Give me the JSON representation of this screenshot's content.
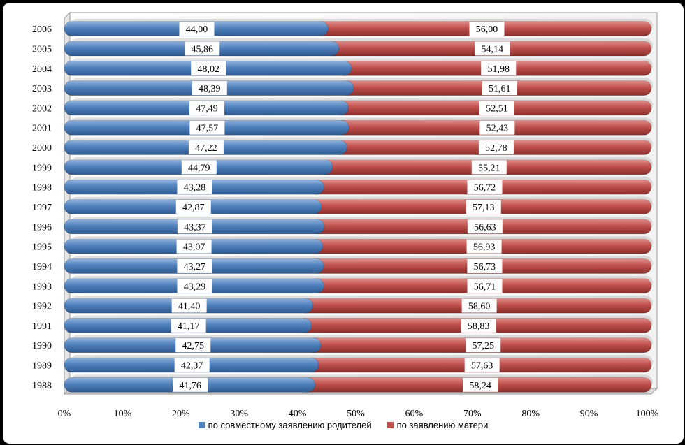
{
  "colors": {
    "series_1": "#4f81bd",
    "series_2": "#c0504d"
  },
  "chart_data": {
    "type": "bar",
    "orientation": "horizontal",
    "stacked": "percent",
    "categories": [
      "2006",
      "2005",
      "2004",
      "2003",
      "2002",
      "2001",
      "2000",
      "1999",
      "1998",
      "1997",
      "1996",
      "1995",
      "1994",
      "1993",
      "1992",
      "1991",
      "1990",
      "1989",
      "1988"
    ],
    "series": [
      {
        "name": "по совместному заявлению родителей",
        "values": [
          44.0,
          45.86,
          48.02,
          48.39,
          47.49,
          47.57,
          47.22,
          44.79,
          43.28,
          42.87,
          43.37,
          43.07,
          43.27,
          43.29,
          41.4,
          41.17,
          42.75,
          42.37,
          41.76
        ],
        "labels": [
          "44,00",
          "45,86",
          "48,02",
          "48,39",
          "47,49",
          "47,57",
          "47,22",
          "44,79",
          "43,28",
          "42,87",
          "43,37",
          "43,07",
          "43,27",
          "43,29",
          "41,40",
          "41,17",
          "42,75",
          "42,37",
          "41,76"
        ]
      },
      {
        "name": "по заявлению матери",
        "values": [
          56.0,
          54.14,
          51.98,
          51.61,
          52.51,
          52.43,
          52.78,
          55.21,
          56.72,
          57.13,
          56.63,
          56.93,
          56.73,
          56.71,
          58.6,
          58.83,
          57.25,
          57.63,
          58.24
        ],
        "labels": [
          "56,00",
          "54,14",
          "51,98",
          "51,61",
          "52,51",
          "52,43",
          "52,78",
          "55,21",
          "56,72",
          "57,13",
          "56,63",
          "56,93",
          "56,73",
          "56,71",
          "58,60",
          "58,83",
          "57,25",
          "57,63",
          "58,24"
        ]
      }
    ],
    "x_ticks": [
      "0%",
      "10%",
      "20%",
      "30%",
      "40%",
      "50%",
      "60%",
      "70%",
      "80%",
      "90%",
      "100%"
    ],
    "xlim": [
      0,
      100
    ],
    "grid": false,
    "legend_position": "bottom"
  }
}
